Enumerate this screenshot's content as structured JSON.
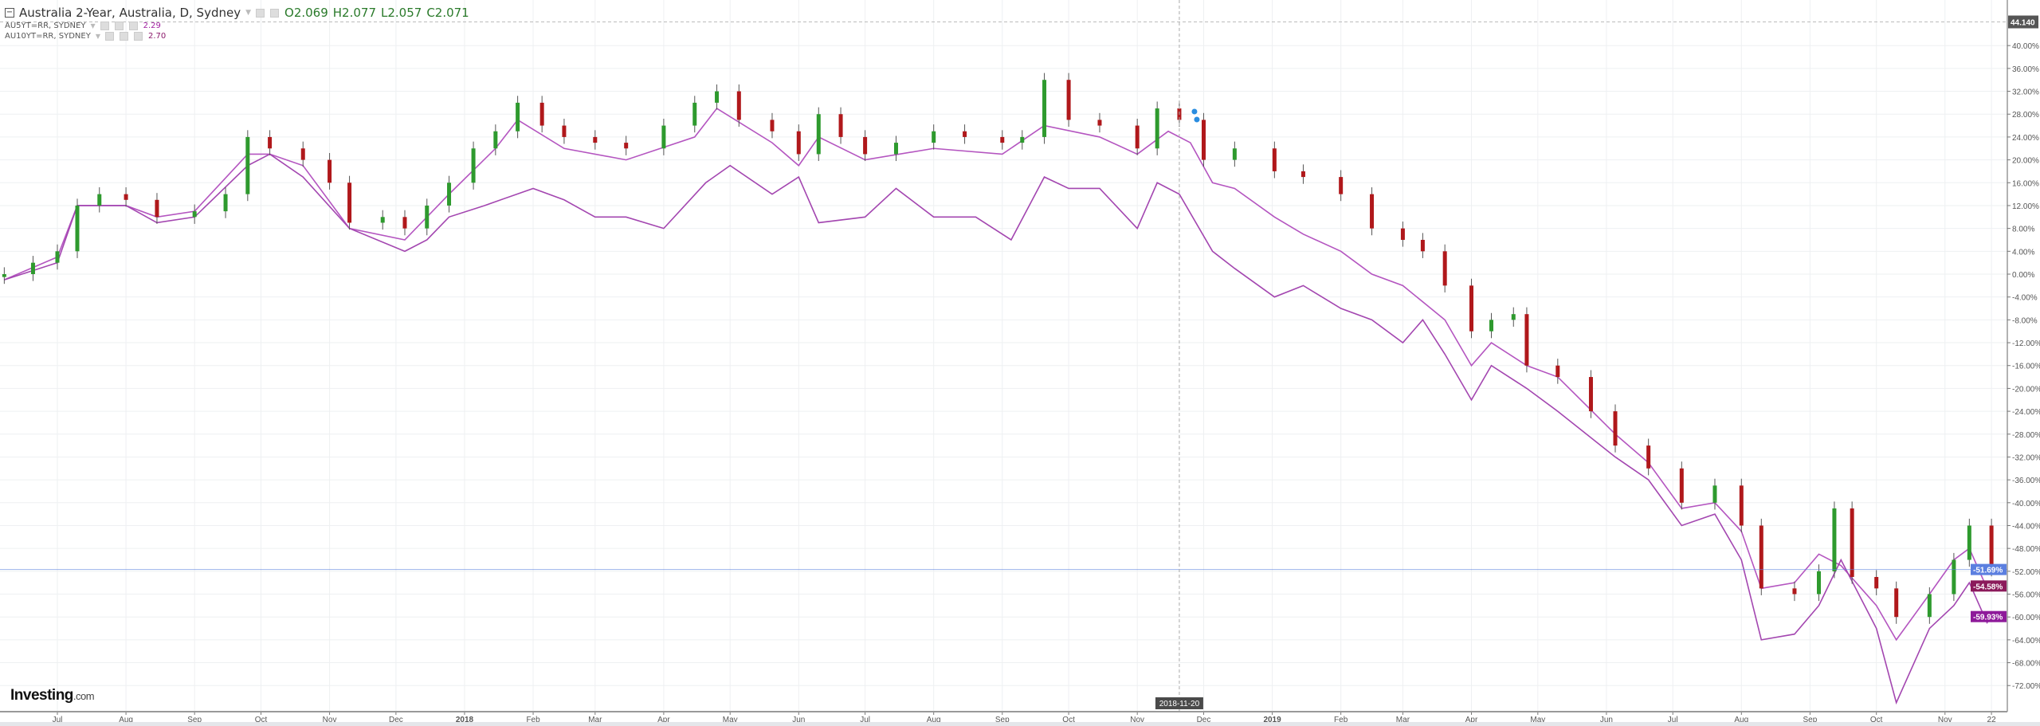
{
  "legend": {
    "main": {
      "title": "Australia 2-Year, Australia, D, Sydney",
      "open": "O2.069",
      "high": "H2.077",
      "low": "L2.057",
      "close": "C2.071"
    },
    "series": [
      {
        "label": "AU5YT=RR, SYDNEY",
        "value": "2.29"
      },
      {
        "label": "AU10YT=RR, SYDNEY",
        "value": "2.70"
      }
    ]
  },
  "logo": {
    "brand": "Investing",
    "suffix": ".com"
  },
  "crosshair": {
    "date_label": "2018-11-20",
    "price_label": "44.140"
  },
  "colors": {
    "up": "#2e9a2e",
    "down": "#b0181b",
    "au5y": "#b455c0",
    "au10y": "#a346b0",
    "last_line": "#5b7fe0",
    "badge_2y": "#5b7fe0",
    "badge_5y": "#8b1a5b",
    "badge_10y": "#8e1a9a"
  },
  "chart_data": {
    "type": "candlestick+line",
    "title": "Australia 2-Year, Australia, D, Sydney",
    "yaxis": {
      "unit": "%",
      "range": [
        -76,
        44
      ],
      "ticks": [
        "40.00%",
        "36.00%",
        "32.00%",
        "28.00%",
        "24.00%",
        "20.00%",
        "16.00%",
        "12.00%",
        "8.00%",
        "4.00%",
        "0.00%",
        "-4.00%",
        "-8.00%",
        "-12.00%",
        "-16.00%",
        "-20.00%",
        "-24.00%",
        "-28.00%",
        "-32.00%",
        "-36.00%",
        "-40.00%",
        "-44.00%",
        "-48.00%",
        "-52.00%",
        "-56.00%",
        "-60.00%",
        "-64.00%",
        "-68.00%",
        "-72.00%"
      ]
    },
    "xaxis": {
      "ticks": [
        {
          "date": "2017-07-01",
          "label": "Jul"
        },
        {
          "date": "2017-08-01",
          "label": "Aug"
        },
        {
          "date": "2017-09-01",
          "label": "Sep"
        },
        {
          "date": "2017-10-01",
          "label": "Oct"
        },
        {
          "date": "2017-11-01",
          "label": "Nov"
        },
        {
          "date": "2017-12-01",
          "label": "Dec"
        },
        {
          "date": "2018-01-01",
          "label": "2018"
        },
        {
          "date": "2018-02-01",
          "label": "Feb"
        },
        {
          "date": "2018-03-01",
          "label": "Mar"
        },
        {
          "date": "2018-04-01",
          "label": "Apr"
        },
        {
          "date": "2018-05-01",
          "label": "May"
        },
        {
          "date": "2018-06-01",
          "label": "Jun"
        },
        {
          "date": "2018-07-01",
          "label": "Jul"
        },
        {
          "date": "2018-08-01",
          "label": "Aug"
        },
        {
          "date": "2018-09-01",
          "label": "Sep"
        },
        {
          "date": "2018-10-01",
          "label": "Oct"
        },
        {
          "date": "2018-11-01",
          "label": "Nov"
        },
        {
          "date": "2018-12-01",
          "label": "Dec"
        },
        {
          "date": "2019-01-01",
          "label": "2019"
        },
        {
          "date": "2019-02-01",
          "label": "Feb"
        },
        {
          "date": "2019-03-01",
          "label": "Mar"
        },
        {
          "date": "2019-04-01",
          "label": "Apr"
        },
        {
          "date": "2019-05-01",
          "label": "May"
        },
        {
          "date": "2019-06-01",
          "label": "Jun"
        },
        {
          "date": "2019-07-01",
          "label": "Jul"
        },
        {
          "date": "2019-08-01",
          "label": "Aug"
        },
        {
          "date": "2019-09-01",
          "label": "Sep"
        },
        {
          "date": "2019-10-01",
          "label": "Oct"
        },
        {
          "date": "2019-11-01",
          "label": "Nov"
        },
        {
          "date": "2019-11-22",
          "label": "22"
        }
      ]
    },
    "grid": true,
    "last_values": [
      {
        "series": "Australia 2-Year",
        "label": "-51.69%"
      },
      {
        "series": "AU5YT=RR",
        "label": "-54.58%"
      },
      {
        "series": "AU10YT=RR",
        "label": "-59.93%"
      }
    ],
    "candles_close": [
      [
        "2017-06-07",
        0
      ],
      [
        "2017-06-20",
        2
      ],
      [
        "2017-07-01",
        4
      ],
      [
        "2017-07-10",
        12
      ],
      [
        "2017-07-20",
        14
      ],
      [
        "2017-08-01",
        13
      ],
      [
        "2017-08-15",
        10
      ],
      [
        "2017-09-01",
        11
      ],
      [
        "2017-09-15",
        14
      ],
      [
        "2017-09-25",
        24
      ],
      [
        "2017-10-05",
        22
      ],
      [
        "2017-10-20",
        20
      ],
      [
        "2017-11-01",
        16
      ],
      [
        "2017-11-10",
        9
      ],
      [
        "2017-11-25",
        10
      ],
      [
        "2017-12-05",
        8
      ],
      [
        "2017-12-15",
        12
      ],
      [
        "2017-12-25",
        16
      ],
      [
        "2018-01-05",
        22
      ],
      [
        "2018-01-15",
        25
      ],
      [
        "2018-01-25",
        30
      ],
      [
        "2018-02-05",
        26
      ],
      [
        "2018-02-15",
        24
      ],
      [
        "2018-03-01",
        23
      ],
      [
        "2018-03-15",
        22
      ],
      [
        "2018-04-01",
        26
      ],
      [
        "2018-04-15",
        30
      ],
      [
        "2018-04-25",
        32
      ],
      [
        "2018-05-05",
        27
      ],
      [
        "2018-05-20",
        25
      ],
      [
        "2018-06-01",
        21
      ],
      [
        "2018-06-10",
        28
      ],
      [
        "2018-06-20",
        24
      ],
      [
        "2018-07-01",
        21
      ],
      [
        "2018-07-15",
        23
      ],
      [
        "2018-08-01",
        25
      ],
      [
        "2018-08-15",
        24
      ],
      [
        "2018-09-01",
        23
      ],
      [
        "2018-09-10",
        24
      ],
      [
        "2018-09-20",
        34
      ],
      [
        "2018-10-01",
        27
      ],
      [
        "2018-10-15",
        26
      ],
      [
        "2018-11-01",
        22
      ],
      [
        "2018-11-10",
        29
      ],
      [
        "2018-11-20",
        27
      ],
      [
        "2018-12-01",
        20
      ],
      [
        "2018-12-15",
        22
      ],
      [
        "2019-01-02",
        18
      ],
      [
        "2019-01-15",
        17
      ],
      [
        "2019-02-01",
        14
      ],
      [
        "2019-02-15",
        8
      ],
      [
        "2019-03-01",
        6
      ],
      [
        "2019-03-10",
        4
      ],
      [
        "2019-03-20",
        -2
      ],
      [
        "2019-04-01",
        -10
      ],
      [
        "2019-04-10",
        -8
      ],
      [
        "2019-04-20",
        -7
      ],
      [
        "2019-04-26",
        -16
      ],
      [
        "2019-05-10",
        -18
      ],
      [
        "2019-05-25",
        -24
      ],
      [
        "2019-06-05",
        -30
      ],
      [
        "2019-06-20",
        -34
      ],
      [
        "2019-07-05",
        -40
      ],
      [
        "2019-07-20",
        -37
      ],
      [
        "2019-08-01",
        -44
      ],
      [
        "2019-08-10",
        -55
      ],
      [
        "2019-08-25",
        -56
      ],
      [
        "2019-09-05",
        -52
      ],
      [
        "2019-09-12",
        -41
      ],
      [
        "2019-09-20",
        -53
      ],
      [
        "2019-10-01",
        -55
      ],
      [
        "2019-10-10",
        -60
      ],
      [
        "2019-10-25",
        -56
      ],
      [
        "2019-11-05",
        -50
      ],
      [
        "2019-11-12",
        -44
      ],
      [
        "2019-11-22",
        -51.69
      ]
    ],
    "series": [
      {
        "name": "AU5YT=RR, SYDNEY",
        "points": [
          [
            "2017-06-07",
            -1
          ],
          [
            "2017-07-01",
            3
          ],
          [
            "2017-07-10",
            12
          ],
          [
            "2017-08-01",
            12
          ],
          [
            "2017-08-15",
            10
          ],
          [
            "2017-09-01",
            11
          ],
          [
            "2017-09-25",
            21
          ],
          [
            "2017-10-05",
            21
          ],
          [
            "2017-10-20",
            19
          ],
          [
            "2017-11-10",
            8
          ],
          [
            "2017-12-05",
            6
          ],
          [
            "2017-12-25",
            14
          ],
          [
            "2018-01-15",
            22
          ],
          [
            "2018-01-25",
            27
          ],
          [
            "2018-02-15",
            22
          ],
          [
            "2018-03-15",
            20
          ],
          [
            "2018-04-15",
            24
          ],
          [
            "2018-04-25",
            29
          ],
          [
            "2018-05-20",
            23
          ],
          [
            "2018-06-01",
            19
          ],
          [
            "2018-06-10",
            24
          ],
          [
            "2018-07-01",
            20
          ],
          [
            "2018-08-01",
            22
          ],
          [
            "2018-09-01",
            21
          ],
          [
            "2018-09-20",
            26
          ],
          [
            "2018-10-15",
            24
          ],
          [
            "2018-11-01",
            21
          ],
          [
            "2018-11-15",
            25
          ],
          [
            "2018-11-25",
            23
          ],
          [
            "2018-12-05",
            16
          ],
          [
            "2018-12-15",
            15
          ],
          [
            "2019-01-02",
            10
          ],
          [
            "2019-01-15",
            7
          ],
          [
            "2019-02-01",
            4
          ],
          [
            "2019-02-15",
            0
          ],
          [
            "2019-03-01",
            -2
          ],
          [
            "2019-03-20",
            -8
          ],
          [
            "2019-04-01",
            -16
          ],
          [
            "2019-04-10",
            -12
          ],
          [
            "2019-04-26",
            -16
          ],
          [
            "2019-05-10",
            -18
          ],
          [
            "2019-06-05",
            -28
          ],
          [
            "2019-06-20",
            -33
          ],
          [
            "2019-07-05",
            -41
          ],
          [
            "2019-07-20",
            -40
          ],
          [
            "2019-08-01",
            -45
          ],
          [
            "2019-08-10",
            -55
          ],
          [
            "2019-08-25",
            -54
          ],
          [
            "2019-09-05",
            -49
          ],
          [
            "2019-09-15",
            -51
          ],
          [
            "2019-10-01",
            -58
          ],
          [
            "2019-10-10",
            -64
          ],
          [
            "2019-10-25",
            -56
          ],
          [
            "2019-11-05",
            -50
          ],
          [
            "2019-11-12",
            -48
          ],
          [
            "2019-11-20",
            -55
          ],
          [
            "2019-11-22",
            -54.58
          ]
        ]
      },
      {
        "name": "AU10YT=RR, SYDNEY",
        "points": [
          [
            "2017-06-07",
            -1
          ],
          [
            "2017-07-01",
            2
          ],
          [
            "2017-07-10",
            12
          ],
          [
            "2017-08-01",
            12
          ],
          [
            "2017-08-15",
            9
          ],
          [
            "2017-09-01",
            10
          ],
          [
            "2017-09-25",
            19
          ],
          [
            "2017-10-05",
            21
          ],
          [
            "2017-10-20",
            17
          ],
          [
            "2017-11-10",
            8
          ],
          [
            "2017-12-05",
            4
          ],
          [
            "2017-12-15",
            6
          ],
          [
            "2017-12-25",
            10
          ],
          [
            "2018-01-10",
            12
          ],
          [
            "2018-02-01",
            15
          ],
          [
            "2018-02-15",
            13
          ],
          [
            "2018-03-01",
            10
          ],
          [
            "2018-03-15",
            10
          ],
          [
            "2018-04-01",
            8
          ],
          [
            "2018-04-20",
            16
          ],
          [
            "2018-05-01",
            19
          ],
          [
            "2018-05-20",
            14
          ],
          [
            "2018-06-01",
            17
          ],
          [
            "2018-06-10",
            9
          ],
          [
            "2018-07-01",
            10
          ],
          [
            "2018-07-15",
            15
          ],
          [
            "2018-08-01",
            10
          ],
          [
            "2018-08-20",
            10
          ],
          [
            "2018-09-05",
            6
          ],
          [
            "2018-09-20",
            17
          ],
          [
            "2018-10-01",
            15
          ],
          [
            "2018-10-15",
            15
          ],
          [
            "2018-11-01",
            8
          ],
          [
            "2018-11-10",
            16
          ],
          [
            "2018-11-20",
            14
          ],
          [
            "2018-12-05",
            4
          ],
          [
            "2018-12-15",
            1
          ],
          [
            "2019-01-02",
            -4
          ],
          [
            "2019-01-15",
            -2
          ],
          [
            "2019-02-01",
            -6
          ],
          [
            "2019-02-15",
            -8
          ],
          [
            "2019-03-01",
            -12
          ],
          [
            "2019-03-10",
            -8
          ],
          [
            "2019-03-20",
            -14
          ],
          [
            "2019-04-01",
            -22
          ],
          [
            "2019-04-10",
            -16
          ],
          [
            "2019-04-26",
            -20
          ],
          [
            "2019-05-10",
            -24
          ],
          [
            "2019-06-05",
            -32
          ],
          [
            "2019-06-20",
            -36
          ],
          [
            "2019-07-05",
            -44
          ],
          [
            "2019-07-20",
            -42
          ],
          [
            "2019-08-01",
            -50
          ],
          [
            "2019-08-10",
            -64
          ],
          [
            "2019-08-25",
            -63
          ],
          [
            "2019-09-05",
            -58
          ],
          [
            "2019-09-15",
            -50
          ],
          [
            "2019-10-01",
            -62
          ],
          [
            "2019-10-10",
            -75
          ],
          [
            "2019-10-25",
            -62
          ],
          [
            "2019-11-05",
            -58
          ],
          [
            "2019-11-12",
            -54
          ],
          [
            "2019-11-20",
            -61
          ],
          [
            "2019-11-22",
            -59.93
          ]
        ]
      }
    ]
  }
}
